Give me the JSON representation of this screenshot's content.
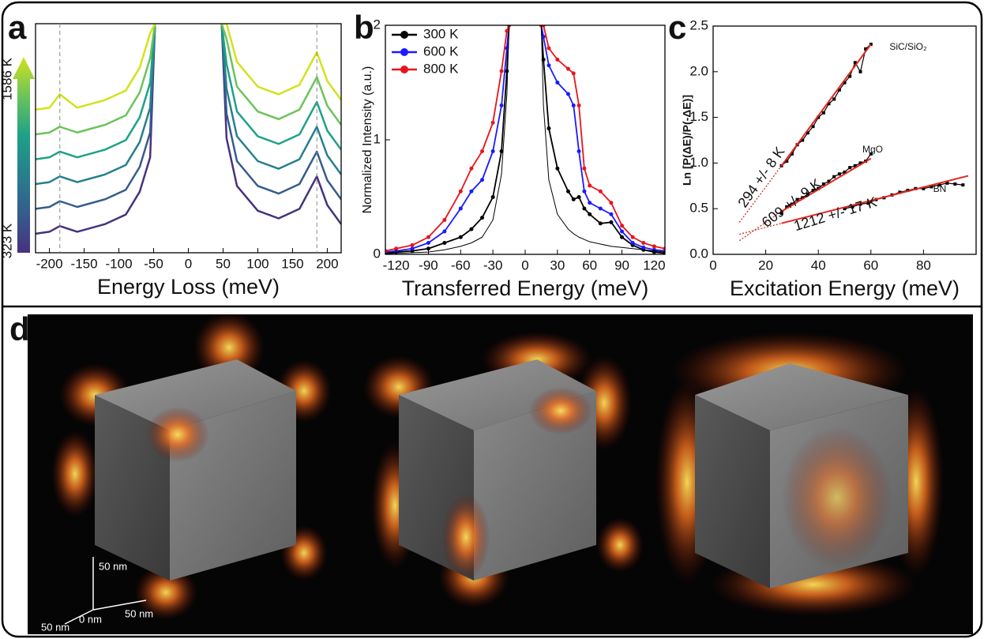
{
  "chart_data": [
    {
      "type": "line",
      "panel_label": "a",
      "xlabel": "Energy Loss (meV)",
      "xlim": [
        -220,
        220
      ],
      "xticks": [
        -200,
        -150,
        -100,
        -50,
        0,
        50,
        100,
        150,
        200
      ],
      "ylim": [
        0,
        12
      ],
      "vlines": [
        -185,
        185
      ],
      "colorbar": {
        "labels": [
          "1586 K",
          "323 K"
        ]
      },
      "x": [
        -220,
        -200,
        -185,
        -160,
        -120,
        -90,
        -70,
        -55,
        -48,
        0,
        48,
        55,
        70,
        100,
        130,
        160,
        185,
        200,
        220
      ],
      "series": [
        {
          "color": "#46327e",
          "values": [
            1,
            1.1,
            1.4,
            1.1,
            1.5,
            2,
            3.2,
            5,
            12,
            null,
            12,
            6,
            3.5,
            2.2,
            1.8,
            2.3,
            4,
            2.5,
            1.5
          ]
        },
        {
          "color": "#365c8d",
          "values": [
            2.3,
            2.4,
            2.7,
            2.4,
            2.8,
            3.3,
            4.5,
            6.3,
            12,
            null,
            12,
            7.3,
            4.8,
            3.5,
            3.1,
            3.6,
            5.3,
            3.8,
            2.8
          ]
        },
        {
          "color": "#277f8e",
          "values": [
            3.6,
            3.7,
            4,
            3.7,
            4.1,
            4.6,
            5.8,
            7.6,
            12,
            null,
            12,
            8.6,
            6.1,
            4.8,
            4.4,
            4.9,
            6.6,
            5.1,
            4.1
          ]
        },
        {
          "color": "#1fa187",
          "values": [
            4.9,
            5,
            5.3,
            5,
            5.4,
            5.9,
            7.1,
            8.9,
            12,
            null,
            12,
            9.9,
            7.4,
            6.1,
            5.7,
            6.2,
            7.9,
            6.4,
            5.4
          ]
        },
        {
          "color": "#6cc35a",
          "values": [
            6.2,
            6.3,
            6.6,
            6.3,
            6.7,
            7.2,
            8.4,
            10.2,
            12,
            null,
            12,
            11.2,
            8.7,
            7.4,
            7,
            7.5,
            9.2,
            7.7,
            6.7
          ]
        },
        {
          "color": "#d2e21b",
          "values": [
            7.5,
            7.6,
            8.3,
            7.6,
            8,
            8.5,
            9.7,
            11.5,
            12,
            null,
            12,
            12,
            10,
            8.7,
            8.3,
            8.8,
            10.5,
            9,
            8
          ]
        }
      ]
    },
    {
      "type": "line",
      "panel_label": "b",
      "xlabel": "Transferred Energy (meV)",
      "ylabel": "Normalized Intensity (a.u.)",
      "xlim": [
        -130,
        130
      ],
      "xticks": [
        -120,
        -90,
        -60,
        -30,
        0,
        30,
        60,
        90,
        120
      ],
      "ylim": [
        0,
        2
      ],
      "yticks": [
        0,
        1,
        2
      ],
      "legend": "upper left",
      "x": [
        -130,
        -120,
        -105,
        -90,
        -75,
        -60,
        -50,
        -40,
        -30,
        -22,
        -17,
        -15,
        0,
        15,
        17,
        22,
        30,
        40,
        45,
        50,
        55,
        60,
        70,
        80,
        90,
        100,
        110,
        120,
        130
      ],
      "series": [
        {
          "name": "300 K",
          "color": "#000000",
          "markers": true,
          "values": [
            0.01,
            0.02,
            0.03,
            0.05,
            0.1,
            0.15,
            0.22,
            0.32,
            0.5,
            0.9,
            1.6,
            2.0,
            null,
            2.0,
            1.7,
            1.1,
            0.75,
            0.55,
            0.48,
            0.5,
            0.4,
            0.35,
            0.27,
            0.28,
            0.15,
            0.08,
            0.04,
            0.02,
            0.01
          ]
        },
        {
          "name": "600 K",
          "color": "#1a1aff",
          "markers": true,
          "values": [
            0.02,
            0.03,
            0.05,
            0.1,
            0.2,
            0.4,
            0.55,
            0.65,
            0.9,
            1.3,
            1.8,
            2.0,
            null,
            2.0,
            1.9,
            1.65,
            1.5,
            1.4,
            1.3,
            0.9,
            0.55,
            0.45,
            0.4,
            0.35,
            0.2,
            0.1,
            0.06,
            0.04,
            0.03
          ]
        },
        {
          "name": "800 K",
          "color": "#e8141a",
          "markers": true,
          "values": [
            0.03,
            0.05,
            0.08,
            0.15,
            0.3,
            0.55,
            0.75,
            0.9,
            1.15,
            1.6,
            1.95,
            2.0,
            null,
            2.0,
            2.0,
            1.8,
            1.7,
            1.62,
            1.58,
            1.3,
            0.75,
            0.6,
            0.55,
            0.45,
            0.25,
            0.15,
            0.1,
            0.07,
            0.05
          ]
        },
        {
          "color": "#000000",
          "markers": false,
          "values": [
            0.005,
            0.01,
            0.015,
            0.02,
            0.04,
            0.07,
            0.1,
            0.15,
            0.3,
            0.7,
            1.4,
            2.0,
            null,
            2.0,
            1.3,
            0.65,
            0.35,
            0.22,
            0.18,
            0.15,
            0.13,
            0.11,
            0.09,
            0.07,
            0.06,
            0.05,
            0.04,
            0.03,
            0.02
          ]
        }
      ]
    },
    {
      "type": "scatter",
      "panel_label": "c",
      "xlabel": "Excitation Energy (meV)",
      "ylabel": "Ln [P(ΔE)/P(-ΔE)]",
      "xlim": [
        0,
        100
      ],
      "xticks": [
        0,
        20,
        40,
        60,
        80
      ],
      "ylim": [
        0,
        2.5
      ],
      "yticks": [
        {
          "value": 0,
          "label": "0.0"
        },
        {
          "value": 0.5,
          "label": "0.5"
        },
        {
          "value": 1,
          "label": "1.0"
        },
        {
          "value": 1.5,
          "label": "1.5"
        },
        {
          "value": 2,
          "label": "2.0"
        },
        {
          "value": 2.5,
          "label": "2.5"
        }
      ],
      "annotations": [
        "294 +/- 8 K",
        "609 +/- 9 K",
        "1212 +/- 17 K"
      ],
      "series": [
        {
          "name": "SiC/SiO₂",
          "style": "points",
          "color": "#000000",
          "x": [
            26,
            28,
            30,
            32,
            34,
            36,
            38,
            40,
            42,
            44,
            46,
            48,
            50,
            52,
            54,
            56,
            58,
            60
          ],
          "values": [
            0.97,
            1.02,
            1.1,
            1.2,
            1.25,
            1.33,
            1.4,
            1.5,
            1.55,
            1.65,
            1.7,
            1.8,
            1.88,
            1.95,
            2.1,
            2.0,
            2.25,
            2.3
          ]
        },
        {
          "name": "MgO",
          "style": "points",
          "color": "#000000",
          "x": [
            26,
            28,
            30,
            32,
            34,
            36,
            38,
            40,
            42,
            44,
            46,
            48,
            50,
            52,
            54,
            56,
            58,
            60
          ],
          "values": [
            0.45,
            0.52,
            0.55,
            0.6,
            0.62,
            0.66,
            0.7,
            0.72,
            0.77,
            0.8,
            0.85,
            0.88,
            0.9,
            0.95,
            0.97,
            1.0,
            1.02,
            1.1
          ]
        },
        {
          "name": "BN",
          "style": "points",
          "color": "#000000",
          "x": [
            50,
            53,
            56,
            59,
            62,
            65,
            68,
            71,
            74,
            77,
            80,
            83,
            86,
            89,
            92,
            95
          ],
          "values": [
            0.5,
            0.52,
            0.55,
            0.56,
            0.6,
            0.62,
            0.65,
            0.68,
            0.7,
            0.72,
            0.72,
            0.74,
            0.76,
            0.78,
            0.77,
            0.76
          ]
        },
        {
          "style": "fit",
          "color": "#e3261f",
          "x": [
            26,
            60
          ],
          "values": [
            0.97,
            2.3
          ]
        },
        {
          "style": "fit",
          "color": "#e3261f",
          "x": [
            26,
            60
          ],
          "values": [
            0.47,
            1.05
          ]
        },
        {
          "style": "fit",
          "color": "#e3261f",
          "x": [
            26,
            97
          ],
          "values": [
            0.34,
            0.86
          ]
        },
        {
          "style": "extrapolation",
          "color": "#c0392b",
          "x": [
            10,
            26
          ],
          "values": [
            0.35,
            0.97
          ]
        },
        {
          "style": "extrapolation",
          "color": "#c0392b",
          "x": [
            10,
            26
          ],
          "values": [
            0.15,
            0.47
          ]
        },
        {
          "style": "extrapolation",
          "color": "#c0392b",
          "x": [
            10,
            26
          ],
          "values": [
            0.22,
            0.34
          ]
        }
      ]
    }
  ],
  "panel_d": {
    "label": "d",
    "scale_bar": {
      "labels": [
        "50 nm",
        "50 nm",
        "50 nm",
        "0 nm"
      ]
    }
  }
}
